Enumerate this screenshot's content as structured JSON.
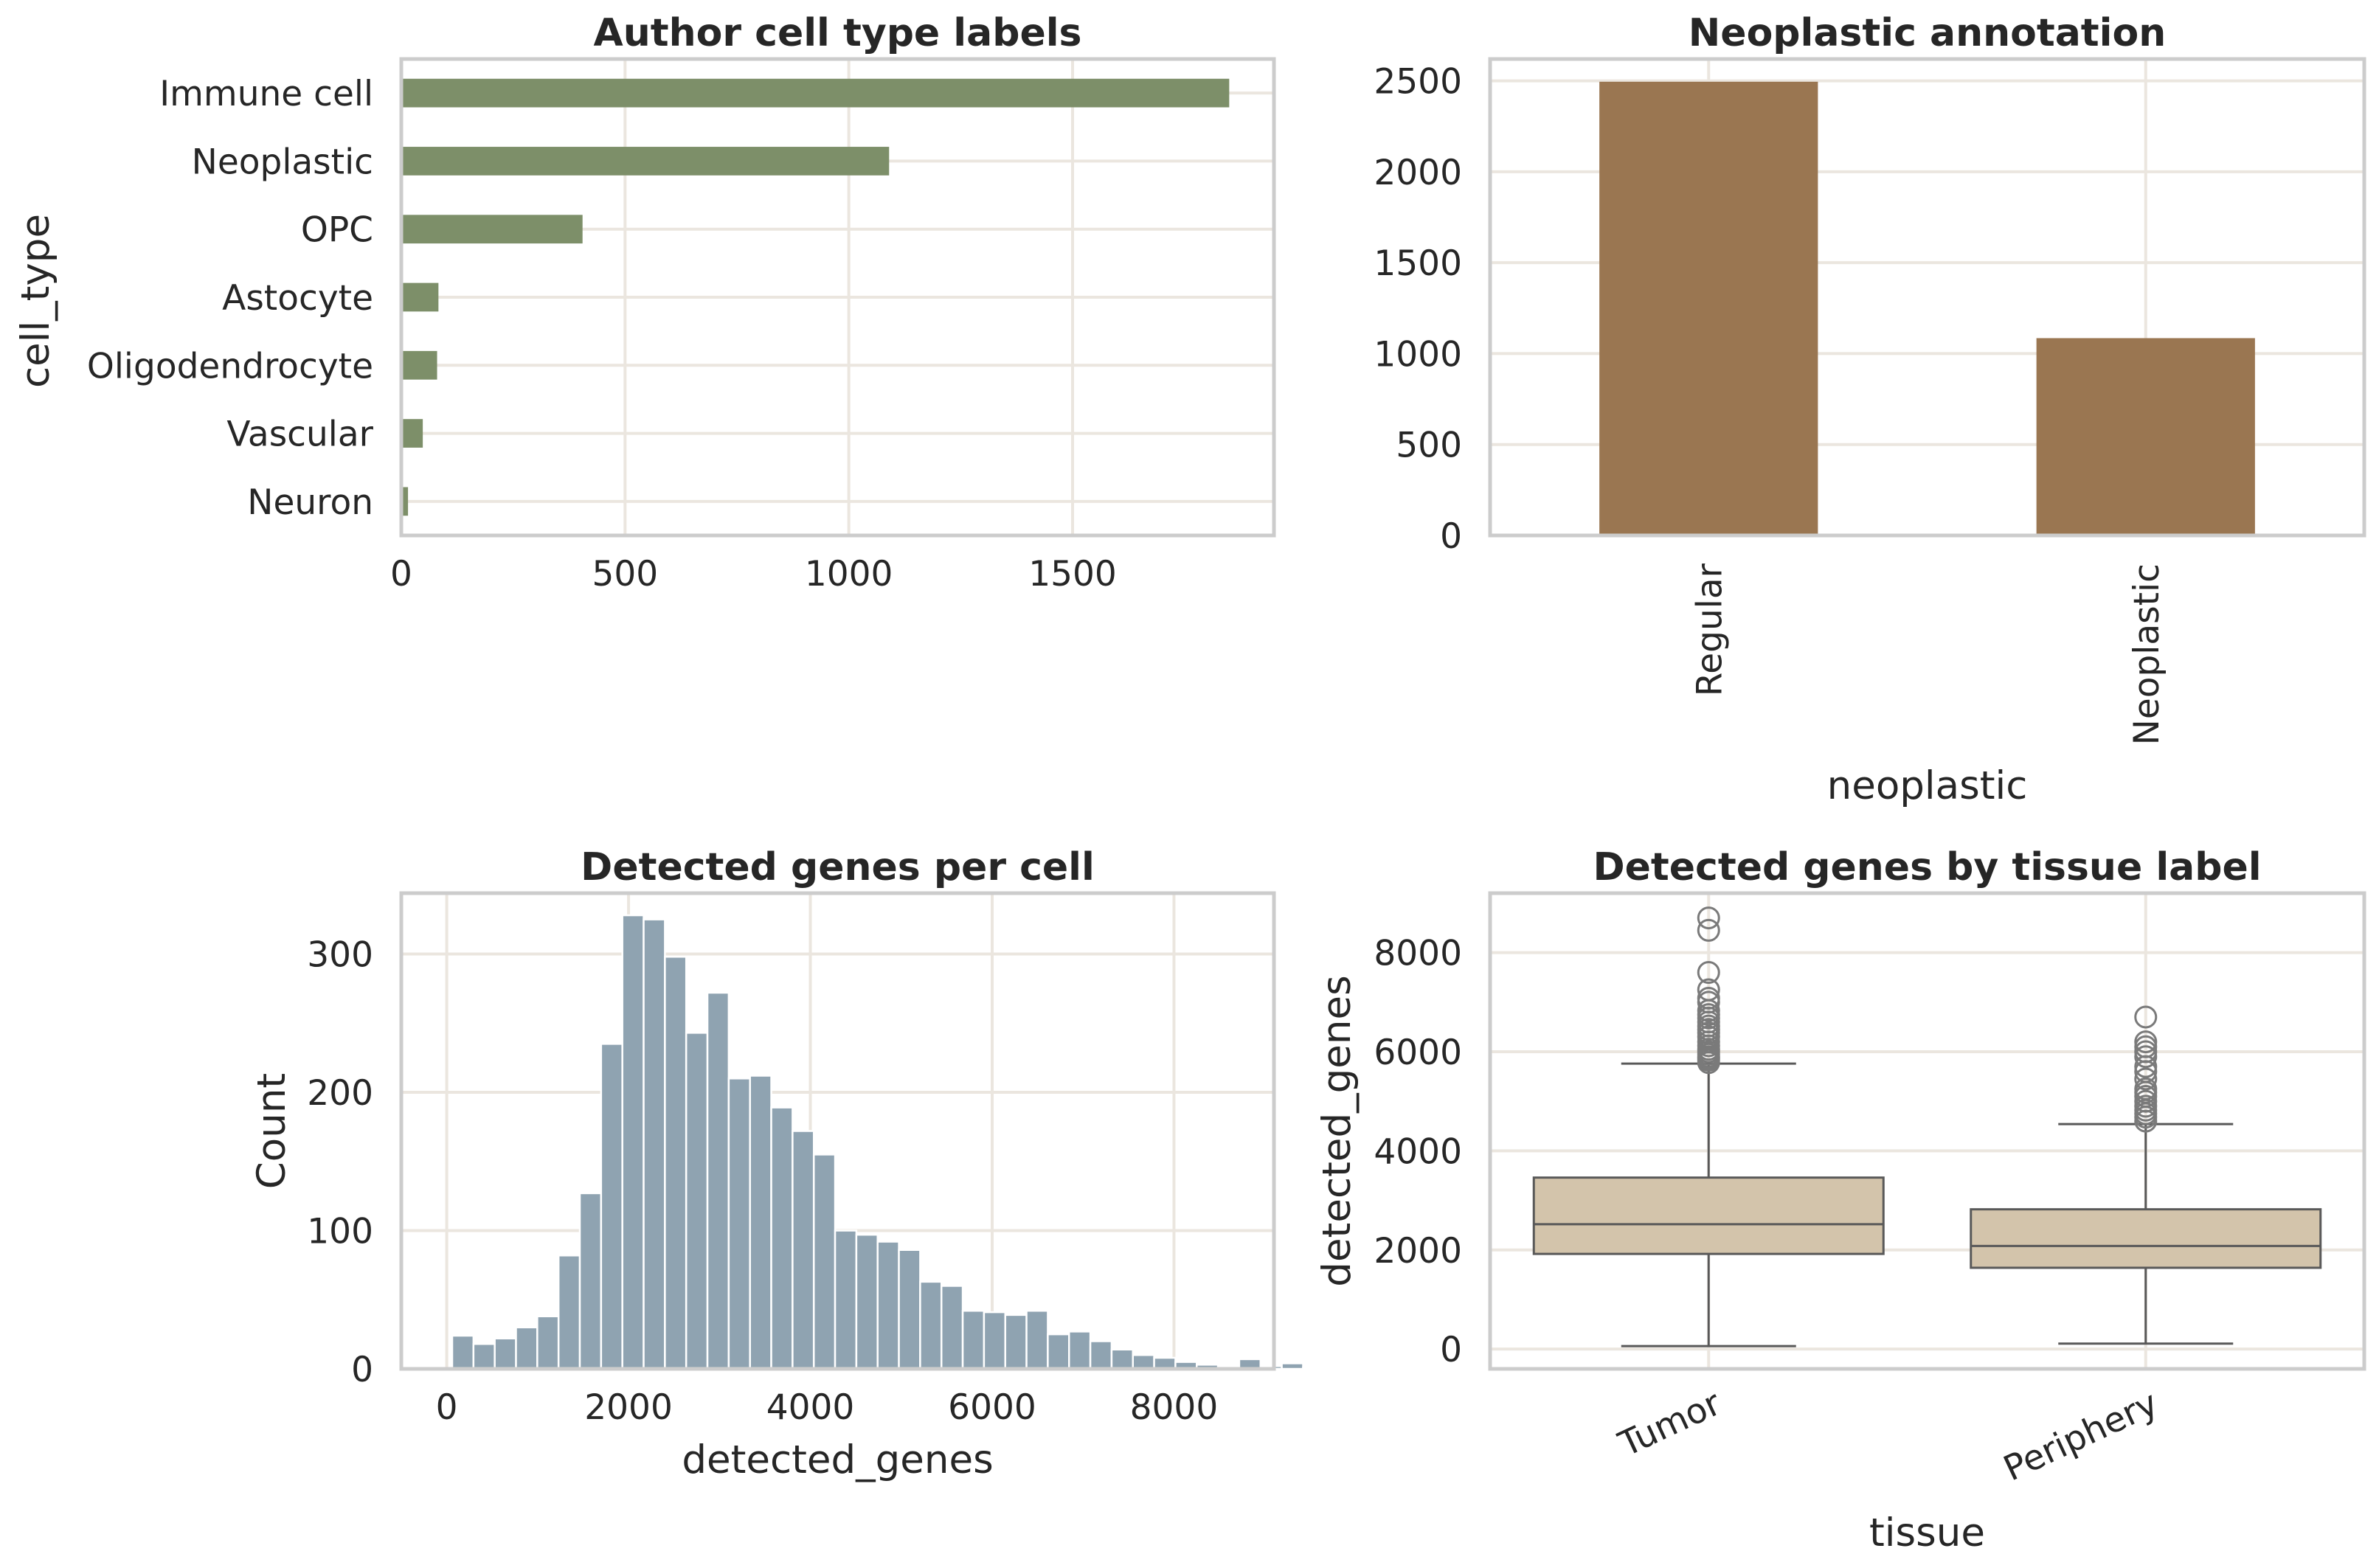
{
  "figure": {
    "colors": {
      "cell_type_bar": "#7d8f69",
      "neoplastic_bar": "#9a7651",
      "histogram_bar": "#8fa3b1",
      "box_fill": "#d3c4ab",
      "box_line": "#595959",
      "grid": "#ebe6df",
      "frame": "#cccccc",
      "text": "#262626"
    }
  },
  "chart_data": [
    {
      "id": "cell_type",
      "type": "bar",
      "orientation": "horizontal",
      "title": "Author cell type labels",
      "xlabel": "",
      "ylabel": "cell_type",
      "categories": [
        "Immune cell",
        "Neoplastic",
        "OPC",
        "Astocyte",
        "Oligodendrocyte",
        "Vascular",
        "Neuron"
      ],
      "values": [
        1850,
        1090,
        405,
        83,
        80,
        48,
        15
      ],
      "xlim": [
        0,
        1950
      ],
      "xticks": [
        0,
        500,
        1000,
        1500
      ],
      "grid": true
    },
    {
      "id": "neoplastic",
      "type": "bar",
      "orientation": "vertical",
      "title": "Neoplastic annotation",
      "xlabel": "neoplastic",
      "ylabel": "",
      "categories": [
        "Regular",
        "Neoplastic"
      ],
      "values": [
        2495,
        1085
      ],
      "ylim": [
        0,
        2620
      ],
      "yticks": [
        0,
        500,
        1000,
        1500,
        2000,
        2500
      ],
      "grid": true
    },
    {
      "id": "histogram",
      "type": "bar",
      "subtype": "histogram",
      "title": "Detected genes per cell",
      "xlabel": "detected_genes",
      "ylabel": "Count",
      "bin_start": 60,
      "bin_width": 234,
      "values": [
        24,
        18,
        22,
        30,
        38,
        82,
        127,
        235,
        328,
        325,
        298,
        243,
        272,
        210,
        212,
        189,
        172,
        155,
        100,
        97,
        92,
        86,
        63,
        60,
        42,
        41,
        39,
        42,
        25,
        27,
        20,
        14,
        10,
        8,
        5,
        3,
        1,
        7,
        2,
        4,
        1,
        1,
        1,
        1,
        1,
        1,
        1
      ],
      "xlim": [
        -500,
        9100
      ],
      "ylim": [
        0,
        344
      ],
      "xticks": [
        0,
        2000,
        4000,
        6000,
        8000
      ],
      "yticks": [
        0,
        100,
        200,
        300
      ],
      "grid": true
    },
    {
      "id": "boxplot",
      "type": "box",
      "title": "Detected genes by tissue label",
      "xlabel": "tissue",
      "ylabel": "detected_genes",
      "categories": [
        "Tumor",
        "Periphery"
      ],
      "boxes": [
        {
          "whisker_low": 60,
          "q1": 1920,
          "median": 2520,
          "q3": 3460,
          "whisker_high": 5760,
          "outliers": [
            5780,
            5830,
            5870,
            5900,
            5950,
            6000,
            6050,
            6120,
            6200,
            6300,
            6380,
            6450,
            6520,
            6600,
            6680,
            6750,
            6830,
            7000,
            7080,
            7250,
            7600,
            8450,
            8700
          ]
        },
        {
          "whisker_low": 110,
          "q1": 1640,
          "median": 2080,
          "q3": 2820,
          "whisker_high": 4540,
          "outliers": [
            4600,
            4680,
            4750,
            4820,
            4900,
            5000,
            5100,
            5180,
            5250,
            5450,
            5600,
            5700,
            5900,
            6000,
            6100,
            6200,
            6700
          ]
        }
      ],
      "ylim": [
        -400,
        9200
      ],
      "yticks": [
        0,
        2000,
        4000,
        6000,
        8000
      ],
      "grid": true
    }
  ]
}
